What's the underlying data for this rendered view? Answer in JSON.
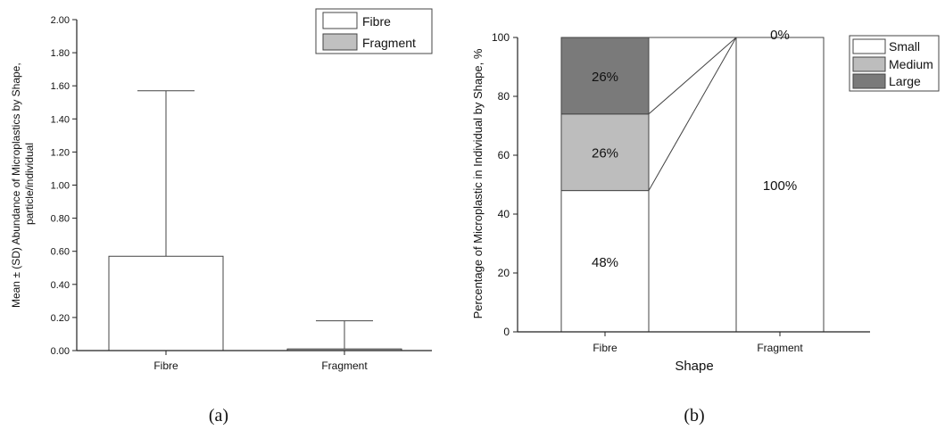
{
  "chart_data": [
    {
      "type": "bar",
      "panel_label": "(a)",
      "ylabel": "Mean ± (SD) Abundance of Microplastics by Shape, particle/individual",
      "categories": [
        "Fibre",
        "Fragment"
      ],
      "series": [
        {
          "name": "Fibre",
          "category": "Fibre",
          "mean": 0.57,
          "sd": 1.0,
          "color": "#ffffff"
        },
        {
          "name": "Fragment",
          "category": "Fragment",
          "mean": 0.01,
          "sd": 0.17,
          "color": "#c0c0c0"
        }
      ],
      "ylim": [
        0,
        2.0
      ],
      "yticks": [
        "0.00",
        "0.20",
        "0.40",
        "0.60",
        "0.80",
        "1.00",
        "1.20",
        "1.40",
        "1.60",
        "1.80",
        "2.00"
      ],
      "legend_position": "top-right",
      "grid": false
    },
    {
      "type": "stacked_bar",
      "panel_label": "(b)",
      "xlabel": "Shape",
      "ylabel": "Percentage of Microplastic in Individual by Shape, %",
      "categories": [
        "Fibre",
        "Fragment"
      ],
      "series": [
        {
          "name": "Small",
          "values": [
            48,
            100
          ],
          "labels": [
            "48%",
            "100%"
          ],
          "color": "#ffffff"
        },
        {
          "name": "Medium",
          "values": [
            26,
            0
          ],
          "labels": [
            "26%",
            ""
          ],
          "color": "#bdbdbd"
        },
        {
          "name": "Large",
          "values": [
            26,
            0
          ],
          "labels": [
            "26%",
            "0%"
          ],
          "color": "#7a7a7a"
        }
      ],
      "ylim": [
        0,
        100
      ],
      "yticks": [
        "0",
        "20",
        "40",
        "60",
        "80",
        "100"
      ],
      "connector_lines": true,
      "legend_position": "top-right",
      "grid": false
    }
  ]
}
